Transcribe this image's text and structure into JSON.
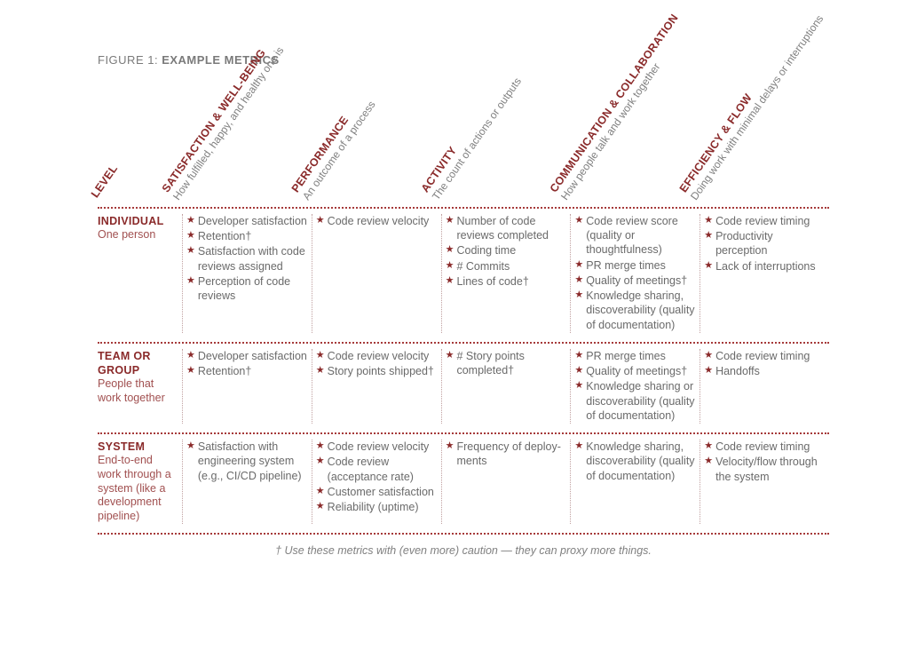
{
  "figure": {
    "prefix": "FIGURE 1: ",
    "title": "EXAMPLE METRICS"
  },
  "level_header": "LEVEL",
  "columns": [
    {
      "title": "SATISFACTION & WELL-BEING",
      "subtitle": "How fulfilled, happy, and healthy one is"
    },
    {
      "title": "PERFORMANCE",
      "subtitle": "An outcome of a process"
    },
    {
      "title": "ACTIVITY",
      "subtitle": "The count of actions or outputs"
    },
    {
      "title": "COMMUNICATION & COLLABORATION",
      "subtitle": "How people talk and work together"
    },
    {
      "title": "EFFICIENCY & FLOW",
      "subtitle": "Doing work with minimal delays or interruptions"
    }
  ],
  "rows": [
    {
      "level": "INDIVIDUAL",
      "desc": "One person",
      "cells": [
        [
          "Developer satisfaction",
          "Retention†",
          "Satisfaction with code reviews assigned",
          "Perception of code reviews"
        ],
        [
          "Code review velocity"
        ],
        [
          "Number of code reviews completed",
          "Coding time",
          "# Commits",
          "Lines of code†"
        ],
        [
          "Code review score (quality or thoughtfulness)",
          "PR merge times",
          "Quality of meetings†",
          "Knowledge sharing, discoverability (quality of documentation)"
        ],
        [
          "Code review timing",
          "Produc­tivity perception",
          "Lack of inter­ruptions"
        ]
      ]
    },
    {
      "level": "TEAM OR GROUP",
      "desc": "People that work together",
      "cells": [
        [
          "Developer satisfaction",
          "Retention†"
        ],
        [
          "Code review velocity",
          "Story points shipped†"
        ],
        [
          "# Story points completed†"
        ],
        [
          "PR merge times",
          "Quality of meetings†",
          "Knowledge sharing or discoverability (quality of documentation)"
        ],
        [
          "Code review timing",
          "Handoffs"
        ]
      ]
    },
    {
      "level": "SYSTEM",
      "desc": "End-to-end work through a system (like a devel­opment pipeline)",
      "cells": [
        [
          "Satisfaction with engineering system (e.g., CI/CD pipeline)"
        ],
        [
          "Code review velocity",
          "Code review (acceptance rate)",
          "Customer satisfaction",
          "Reliability (uptime)"
        ],
        [
          "Frequency of deploy­ments"
        ],
        [
          "Knowledge sharing, discoverability (quality of documentation)"
        ],
        [
          "Code review timing",
          "Velocity/flow through the system"
        ]
      ]
    }
  ],
  "footnote": "† Use these metrics with (even more) caution — they can proxy more things.",
  "colors": {
    "accent": "#8a2a2a",
    "accent_light": "#a15050",
    "text": "#6a6a6a",
    "dotted": "#a63a3a"
  }
}
